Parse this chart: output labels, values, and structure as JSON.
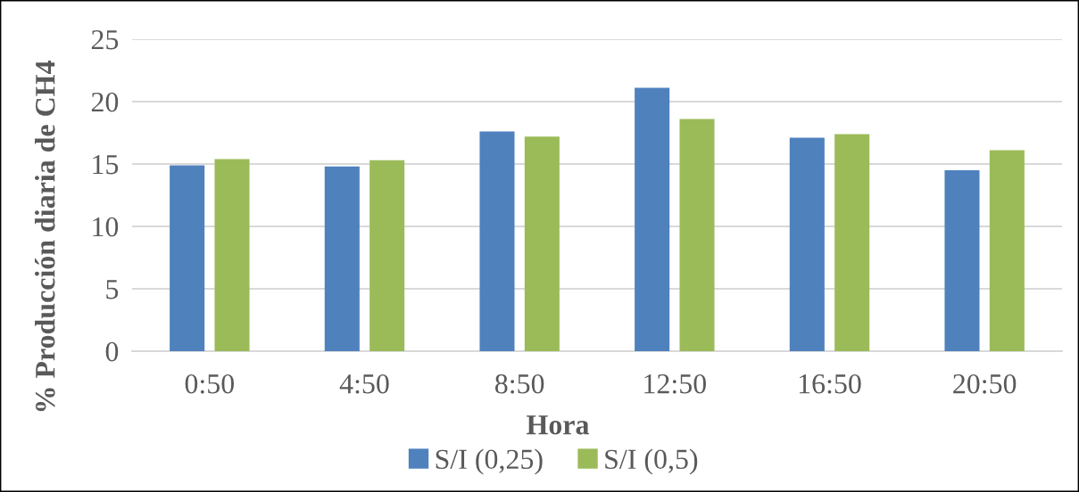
{
  "chart_data": {
    "type": "bar",
    "xlabel": "Hora",
    "ylabel": "% Producción diaria de CH4",
    "categories": [
      "0:50",
      "4:50",
      "8:50",
      "12:50",
      "16:50",
      "20:50"
    ],
    "series": [
      {
        "name": "S/I (0,25)",
        "color": "#4f81bd",
        "values": [
          14.9,
          14.8,
          17.6,
          21.1,
          17.1,
          14.5
        ]
      },
      {
        "name": "S/I (0,5)",
        "color": "#9bbb59",
        "values": [
          15.4,
          15.3,
          17.2,
          18.6,
          17.4,
          16.1
        ]
      }
    ],
    "ylim": [
      0,
      25
    ],
    "yticks": [
      0,
      5,
      10,
      15,
      20,
      25
    ],
    "grid": "y",
    "legend": "bottom"
  }
}
